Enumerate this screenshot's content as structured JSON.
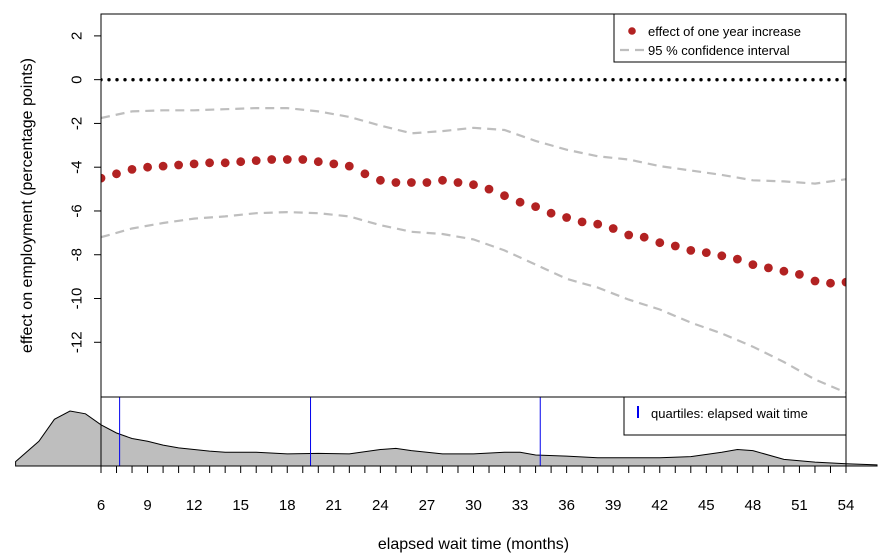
{
  "chart_data": [
    {
      "type": "scatter",
      "ylabel": "effect on employment (percentage points)",
      "xlim": [
        6,
        54
      ],
      "ylim": [
        -14.5,
        3
      ],
      "yticks": [
        2,
        0,
        -2,
        -4,
        -6,
        -8,
        -10,
        -12
      ],
      "ytick_labels": [
        "2",
        "0",
        "-2",
        "-4",
        "-6",
        "-8",
        "-10",
        "-12"
      ],
      "legend_position": "top-right",
      "grid": false,
      "series": [
        {
          "name": "effect of one year increase",
          "style": "points",
          "color": "#b22222",
          "x": [
            6,
            7,
            8,
            9,
            10,
            11,
            12,
            13,
            14,
            15,
            16,
            17,
            18,
            19,
            20,
            21,
            22,
            23,
            24,
            25,
            26,
            27,
            28,
            29,
            30,
            31,
            32,
            33,
            34,
            35,
            36,
            37,
            38,
            39,
            40,
            41,
            42,
            43,
            44,
            45,
            46,
            47,
            48,
            49,
            50,
            51,
            52,
            53,
            54
          ],
          "y": [
            -4.5,
            -4.3,
            -4.1,
            -4.0,
            -3.95,
            -3.9,
            -3.85,
            -3.8,
            -3.8,
            -3.75,
            -3.7,
            -3.65,
            -3.65,
            -3.65,
            -3.75,
            -3.85,
            -3.95,
            -4.3,
            -4.6,
            -4.7,
            -4.7,
            -4.7,
            -4.6,
            -4.7,
            -4.8,
            -5.0,
            -5.3,
            -5.6,
            -5.8,
            -6.1,
            -6.3,
            -6.5,
            -6.6,
            -6.8,
            -7.1,
            -7.2,
            -7.45,
            -7.6,
            -7.8,
            -7.9,
            -8.05,
            -8.2,
            -8.45,
            -8.6,
            -8.75,
            -8.9,
            -9.2,
            -9.3,
            -9.25
          ]
        },
        {
          "name": "95 % confidence interval",
          "style": "dashed-line",
          "color": "#bebebe",
          "x": [
            6,
            8,
            10,
            12,
            14,
            16,
            18,
            20,
            22,
            24,
            26,
            28,
            30,
            32,
            34,
            36,
            38,
            40,
            42,
            44,
            46,
            48,
            50,
            52,
            54
          ],
          "y": [
            -1.75,
            -1.45,
            -1.4,
            -1.4,
            -1.35,
            -1.3,
            -1.3,
            -1.45,
            -1.7,
            -2.1,
            -2.45,
            -2.35,
            -2.2,
            -2.3,
            -2.8,
            -3.2,
            -3.5,
            -3.65,
            -3.95,
            -4.15,
            -4.35,
            -4.6,
            -4.65,
            -4.75,
            -4.55
          ]
        },
        {
          "name": "",
          "style": "dashed-line",
          "color": "#bebebe",
          "x": [
            6,
            8,
            10,
            12,
            14,
            16,
            18,
            20,
            22,
            24,
            26,
            28,
            30,
            32,
            34,
            36,
            38,
            40,
            42,
            44,
            46,
            48,
            50,
            52,
            54
          ],
          "y": [
            -7.2,
            -6.8,
            -6.55,
            -6.35,
            -6.25,
            -6.1,
            -6.05,
            -6.1,
            -6.25,
            -6.65,
            -6.95,
            -7.05,
            -7.3,
            -7.8,
            -8.45,
            -9.1,
            -9.5,
            -10.05,
            -10.5,
            -11.1,
            -11.6,
            -12.2,
            -12.9,
            -13.7,
            -14.3
          ]
        },
        {
          "name": "",
          "style": "dotted-line",
          "color": "#000000",
          "x": [
            6,
            54
          ],
          "y": [
            0,
            0
          ]
        }
      ]
    },
    {
      "type": "area",
      "xlabel": "elapsed wait time (months)",
      "xticks": [
        6,
        7,
        8,
        9,
        10,
        11,
        12,
        13,
        14,
        15,
        16,
        17,
        18,
        19,
        20,
        21,
        22,
        23,
        24,
        25,
        26,
        27,
        28,
        29,
        30,
        31,
        32,
        33,
        34,
        35,
        36,
        37,
        38,
        39,
        40,
        41,
        42,
        43,
        44,
        45,
        46,
        47,
        48,
        49,
        50,
        51,
        52,
        53,
        54
      ],
      "xtick_labels": [
        "6",
        "9",
        "12",
        "15",
        "18",
        "21",
        "24",
        "27",
        "30",
        "33",
        "36",
        "39",
        "42",
        "45",
        "48",
        "51",
        "54"
      ],
      "xtick_label_values": [
        6,
        9,
        12,
        15,
        18,
        21,
        24,
        27,
        30,
        33,
        36,
        39,
        42,
        45,
        48,
        51,
        54
      ],
      "fill_color": "#bebebe",
      "density_x": [
        0.5,
        2,
        3,
        4,
        5,
        6,
        7,
        8,
        9,
        10,
        11,
        12,
        13,
        14,
        16,
        18,
        20,
        22,
        24,
        25,
        26,
        28,
        30,
        32,
        33,
        34,
        36,
        38,
        40,
        42,
        44,
        46,
        47,
        48,
        50,
        52,
        54,
        56
      ],
      "density_y": [
        0.08,
        0.45,
        0.85,
        1.0,
        0.95,
        0.75,
        0.6,
        0.5,
        0.45,
        0.38,
        0.33,
        0.3,
        0.27,
        0.25,
        0.25,
        0.22,
        0.23,
        0.22,
        0.3,
        0.32,
        0.28,
        0.22,
        0.22,
        0.25,
        0.25,
        0.2,
        0.18,
        0.15,
        0.15,
        0.15,
        0.17,
        0.25,
        0.3,
        0.28,
        0.12,
        0.07,
        0.04,
        0.02
      ],
      "quartiles": [
        7.2,
        19.5,
        34.3
      ],
      "quartile_color": "#0000ee",
      "legend_label": "quartiles: elapsed wait time",
      "legend_position": "top-right"
    }
  ]
}
